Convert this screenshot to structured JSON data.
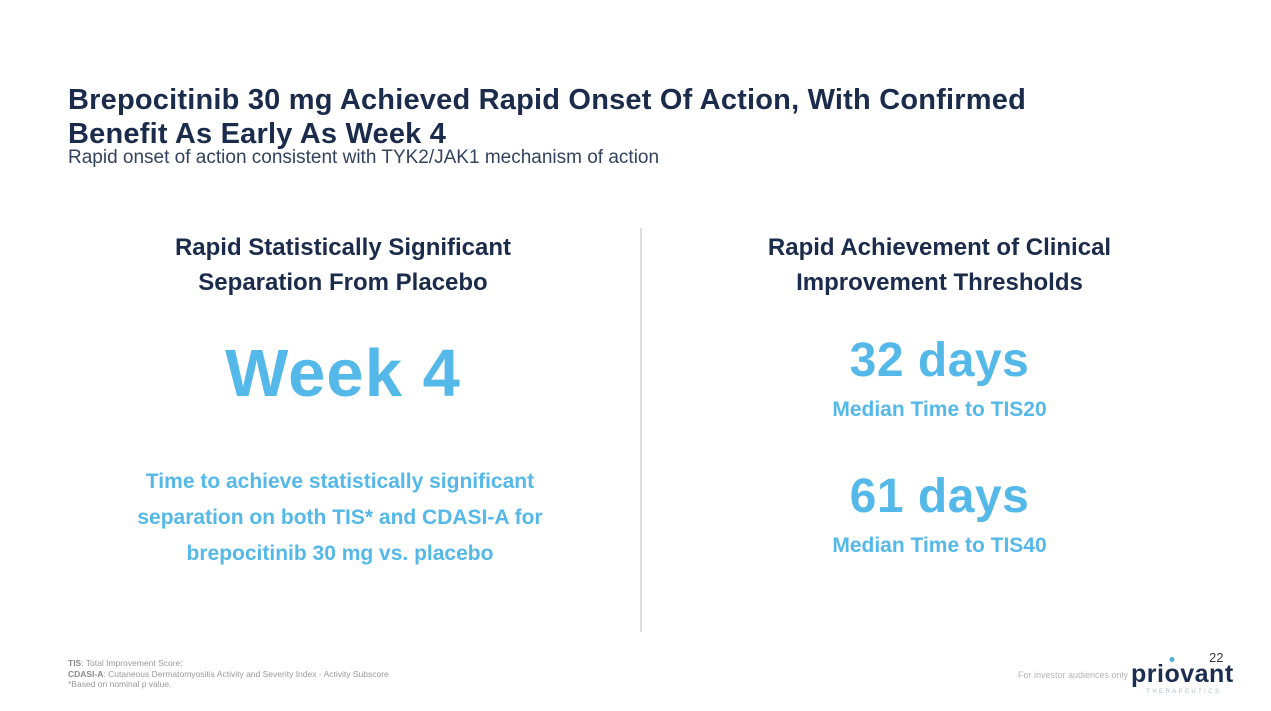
{
  "slide": {
    "title_lines": [
      "Brepocitinib 30 mg Achieved Rapid Onset Of Action, With Confirmed",
      "Benefit As Early As Week 4"
    ],
    "subtitle": "Rapid onset of action consistent with TYK2/JAK1 mechanism of action",
    "page_number": "22"
  },
  "colors": {
    "navy": "#1B2B4B",
    "accent_blue": "#54B8E8",
    "footnote_gray": "#9A9A9A",
    "divider_gray": "#DEDEDE"
  },
  "left_panel": {
    "heading_lines": [
      "Rapid Statistically Significant",
      "Separation From Placebo"
    ],
    "big_value": "Week 4",
    "body_lines": [
      "Time to achieve statistically significant",
      "separation on both TIS* and CDASI-A for",
      "brepocitinib 30 mg vs. placebo"
    ]
  },
  "right_panel": {
    "heading_lines": [
      "Rapid Achievement of Clinical",
      "Improvement Thresholds"
    ],
    "stats": [
      {
        "value": "32 days",
        "label": "Median Time to TIS20"
      },
      {
        "value": "61 days",
        "label": "Median Time to TIS40"
      }
    ]
  },
  "footer": {
    "note1_term": "TIS",
    "note1_def": ": Total Improvement Score;",
    "note2_term": "CDASI-A",
    "note2_def": ": Cutaneous Dermatomyositis Activity and Severity Index - Activity Subscore",
    "note3": "*Based on nominal p value.",
    "disclaimer": "For investor audiences only",
    "logo": {
      "part1": "pri",
      "part2": "o",
      "part3": "vant",
      "subtext": "THERAPEUTICS"
    }
  }
}
